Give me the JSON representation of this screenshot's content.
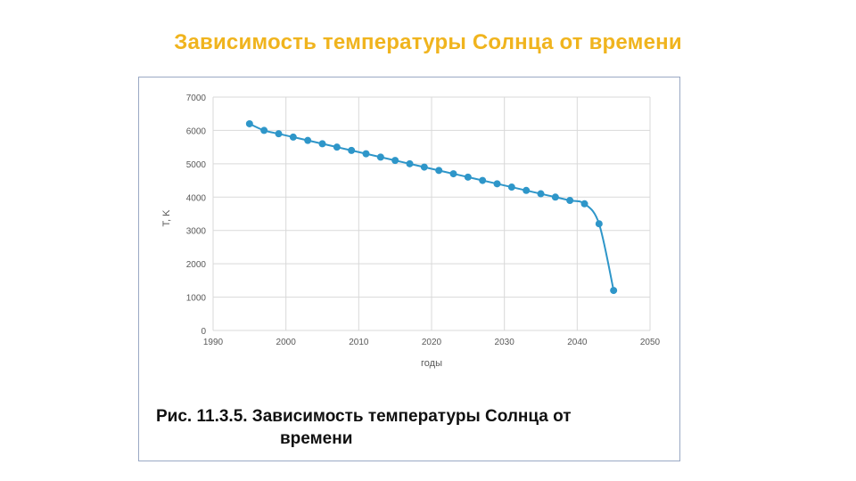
{
  "slide": {
    "title": "Зависимость температуры Солнца от времени"
  },
  "caption": {
    "line1": "Рис. 11.3.5. Зависимость температуры Солнца от",
    "line2": "времени"
  },
  "colors": {
    "title": "#f0b41e",
    "series": "#2e96c9",
    "grid": "#d9d9d9",
    "frame": "#9aa9c4"
  },
  "chart_data": {
    "type": "line",
    "title": "",
    "xlabel": "годы",
    "ylabel": "T, K",
    "xlim": [
      1990,
      2050
    ],
    "ylim": [
      0,
      7000
    ],
    "x_ticks": [
      "1990",
      "2000",
      "2010",
      "2020",
      "2030",
      "2040",
      "2050"
    ],
    "y_ticks": [
      "0",
      "1000",
      "2000",
      "3000",
      "4000",
      "5000",
      "6000",
      "7000"
    ],
    "grid": true,
    "legend": "none",
    "series": [
      {
        "x": [
          1995,
          1997,
          1999,
          2001,
          2003,
          2005,
          2007,
          2009,
          2011,
          2013,
          2015,
          2017,
          2019,
          2021,
          2023,
          2025,
          2027,
          2029,
          2031,
          2033,
          2035,
          2037,
          2039,
          2041,
          2043,
          2045
        ],
        "y": [
          6200,
          6000,
          5900,
          5800,
          5700,
          5600,
          5500,
          5400,
          5300,
          5200,
          5100,
          5000,
          4900,
          4800,
          4700,
          4600,
          4500,
          4400,
          4300,
          4200,
          4100,
          4000,
          3900,
          3800,
          3200,
          1200
        ]
      }
    ]
  }
}
